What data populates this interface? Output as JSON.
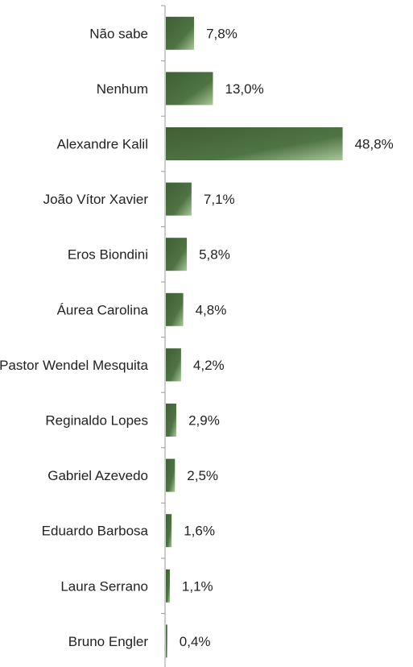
{
  "chart_data": {
    "type": "bar",
    "orientation": "horizontal",
    "categories": [
      "Não sabe",
      "Nenhum",
      "Alexandre Kalil",
      "João Vítor Xavier",
      "Eros Biondini",
      "Áurea Carolina",
      "Pastor Wendel Mesquita",
      "Reginaldo Lopes",
      "Gabriel Azevedo",
      "Eduardo Barbosa",
      "Laura Serrano",
      "Bruno Engler"
    ],
    "values": [
      7.8,
      13.0,
      48.8,
      7.1,
      5.8,
      4.8,
      4.2,
      2.9,
      2.5,
      1.6,
      1.1,
      0.4
    ],
    "value_labels": [
      "7,8%",
      "13,0%",
      "48,8%",
      "7,1%",
      "5,8%",
      "4,8%",
      "4,2%",
      "2,9%",
      "2,5%",
      "1,6%",
      "1,1%",
      "0,4%"
    ],
    "unit": "%",
    "grid": false,
    "legend": "none",
    "colors": {
      "bar_dark": "#3e5f34",
      "bar_mid": "#4f7443",
      "bar_light": "#a9c79a",
      "axis": "#9a9a9a",
      "text": "#222222"
    }
  }
}
